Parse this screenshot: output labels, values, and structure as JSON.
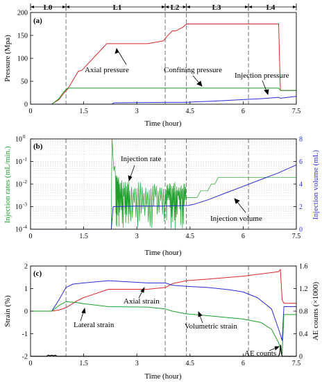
{
  "phases": {
    "labels": [
      "L0",
      "L1",
      "L2",
      "L3",
      "L4"
    ],
    "boundaries": [
      0,
      1.0,
      3.8,
      4.4,
      6.15,
      7.5
    ]
  },
  "colors": {
    "red": "#d62728",
    "green": "#1e9e2a",
    "blue": "#2b2bd6",
    "black": "#000000"
  },
  "chart_data": [
    {
      "type": "line",
      "panel_label": "(a)",
      "xlabel": "Time (hour)",
      "ylabel": "Pressure (Mpa)",
      "xlim": [
        0,
        7.5
      ],
      "ylim": [
        0,
        200
      ],
      "xticks": [
        0,
        1.5,
        3,
        4.5,
        6,
        7.5
      ],
      "xtick_labels": [
        "0",
        "1.5",
        "3",
        "4.5",
        "6",
        "7.5"
      ],
      "yticks": [
        0,
        50,
        100,
        150,
        200
      ],
      "ytick_labels": [
        "0",
        "50",
        "100",
        "150",
        "200"
      ],
      "grid": false,
      "series": [
        {
          "name": "Axial pressure",
          "color": "red",
          "x": [
            0,
            0.6,
            0.8,
            0.95,
            1.05,
            1.35,
            1.45,
            2.15,
            3.3,
            3.75,
            3.85,
            4.0,
            4.1,
            4.3,
            4.4,
            7.0,
            7.05,
            7.5
          ],
          "y": [
            0,
            0,
            10,
            25,
            33,
            72,
            74,
            132,
            132,
            138,
            148,
            160,
            160,
            168,
            175,
            175,
            30,
            30
          ]
        },
        {
          "name": "Confining pressure",
          "color": "green",
          "x": [
            0,
            0.6,
            0.8,
            0.95,
            1.05,
            7.0,
            7.05,
            7.5
          ],
          "y": [
            0,
            0,
            12,
            28,
            35,
            35,
            30,
            30
          ]
        },
        {
          "name": "Injection pressure",
          "color": "blue",
          "x": [
            0,
            2.3,
            2.35,
            3.8,
            4.4,
            4.6,
            5.0,
            5.5,
            6.0,
            6.5,
            6.85,
            7.0,
            7.05,
            7.5
          ],
          "y": [
            0,
            0,
            3,
            4,
            4,
            5,
            6,
            8,
            10,
            12,
            14,
            15,
            13,
            17
          ]
        }
      ],
      "annotations": [
        "Axial pressure",
        "Confining pressure",
        "Injection pressure"
      ]
    },
    {
      "type": "line",
      "panel_label": "(b)",
      "xlabel": "Time (hour)",
      "ylabel": "Injection rates  (mL/min.)",
      "y2label": "Injection volume (mL)",
      "xlim": [
        0,
        7.5
      ],
      "ylim_log10": [
        -4,
        0
      ],
      "y2lim": [
        0,
        8
      ],
      "xticks": [
        0,
        1.5,
        3,
        4.5,
        6,
        7.5
      ],
      "xtick_labels": [
        "0",
        "1.5",
        "3",
        "4.5",
        "6",
        "7.5"
      ],
      "yticks_log10": [
        -4,
        -3,
        -2,
        -1,
        0
      ],
      "ytick_exponents": [
        "-4",
        "-3",
        "-2",
        "-1",
        "0"
      ],
      "y2ticks": [
        0,
        2,
        4,
        6,
        8
      ],
      "y2tick_labels": [
        "0",
        "2",
        "4",
        "6",
        "8"
      ],
      "grid": true,
      "series": [
        {
          "name": "Injection rate",
          "color": "green",
          "axis": "left",
          "scale": "log",
          "x": [
            2.28,
            2.29,
            2.3,
            2.32,
            2.35,
            2.38,
            2.4,
            2.45,
            2.5,
            2.6,
            2.7,
            2.8,
            3.0,
            3.2,
            3.4,
            3.6,
            3.8,
            3.9,
            4.0,
            4.1,
            4.2,
            4.3,
            4.4,
            4.5,
            4.6,
            4.7,
            4.8,
            4.9,
            5.0,
            5.1,
            5.2,
            5.3,
            5.4,
            5.5,
            5.6,
            5.7,
            5.8,
            5.9,
            6.0,
            6.1,
            6.2,
            6.3,
            6.4,
            6.5,
            6.6,
            6.7,
            6.8,
            6.9,
            7.0,
            7.1,
            7.2,
            7.3,
            7.4,
            7.5
          ],
          "y_log10": [
            -4,
            -1.5,
            0,
            -0.6,
            -1.4,
            -1.2,
            -1.8,
            -1.9,
            -2.0,
            -2.2,
            -2.1,
            -2.3,
            -2.2,
            -2.4,
            -2.2,
            -2.3,
            -2.3,
            -2.2,
            -2.2,
            -2.3,
            -2.3,
            -2.2,
            -2.6,
            -2.6,
            -2.6,
            -2.6,
            -2.3,
            -2.3,
            -2.3,
            -2.0,
            -2.0,
            -1.7,
            -1.7,
            -1.7,
            -1.7,
            -1.7,
            -1.7,
            -1.7,
            -1.7,
            -1.7,
            -1.7,
            -1.7,
            -1.7,
            -1.7,
            -1.7,
            -1.7,
            -1.7,
            -1.7,
            -1.7,
            -1.7,
            -1.7,
            -1.7,
            -1.7,
            -1.7
          ]
        },
        {
          "name": "Injection volume",
          "color": "blue",
          "axis": "right",
          "x": [
            0,
            2.28,
            2.33,
            3.0,
            3.8,
            4.45,
            4.6,
            5.0,
            5.5,
            6.0,
            6.5,
            7.0,
            7.5
          ],
          "y": [
            0,
            0,
            2.0,
            2.05,
            2.05,
            2.1,
            2.2,
            2.6,
            3.2,
            3.8,
            4.4,
            5.0,
            5.7
          ]
        }
      ],
      "annotations": [
        "Injection rate",
        "Injection volume"
      ]
    },
    {
      "type": "line",
      "panel_label": "(c)",
      "xlabel": "Time (hour)",
      "ylabel": "Strain (%)",
      "y2label": "AE counts (×1000)",
      "xlim": [
        0,
        7.5
      ],
      "ylim": [
        -2,
        2
      ],
      "y2lim": [
        0,
        1.6
      ],
      "xticks": [
        0,
        1.5,
        3,
        4.5,
        6,
        7.5
      ],
      "xtick_labels": [
        "0",
        "1.5",
        "3",
        "4.5",
        "6",
        "7.5"
      ],
      "yticks": [
        -2,
        -1,
        0,
        1,
        2
      ],
      "ytick_labels": [
        "-2",
        "-1",
        "0",
        "1",
        "2"
      ],
      "y2ticks": [
        0,
        0.4,
        0.8,
        1.2,
        1.6
      ],
      "y2tick_labels": [
        "0",
        "0.4",
        "0.8",
        "1.2",
        "1.6"
      ],
      "grid": false,
      "series": [
        {
          "name": "Axial strain",
          "color": "red",
          "x": [
            0,
            0.6,
            0.8,
            1.0,
            1.3,
            1.5,
            2.2,
            3.3,
            3.8,
            4.0,
            4.4,
            5.0,
            6.0,
            7.0,
            7.05,
            7.1,
            7.15,
            7.5
          ],
          "y": [
            0,
            0,
            0.05,
            0.15,
            0.45,
            0.6,
            0.97,
            0.97,
            1.05,
            1.22,
            1.35,
            1.42,
            1.55,
            1.75,
            1.85,
            0.5,
            0.35,
            0.35
          ]
        },
        {
          "name": "Volumetric strain",
          "color": "blue",
          "x": [
            0,
            0.6,
            0.8,
            1.0,
            1.2,
            1.5,
            2.2,
            3.3,
            3.8,
            4.0,
            4.4,
            5.0,
            5.6,
            6.0,
            6.4,
            6.8,
            7.0,
            7.1,
            7.15,
            7.5
          ],
          "y": [
            0,
            0,
            0.5,
            1.05,
            1.2,
            1.25,
            1.35,
            1.25,
            1.25,
            1.15,
            1.1,
            1.05,
            0.95,
            0.85,
            0.6,
            0.1,
            -0.8,
            -1.3,
            0.2,
            0.2
          ]
        },
        {
          "name": "Lateral strain",
          "color": "green",
          "x": [
            0,
            0.6,
            0.8,
            1.0,
            1.3,
            1.5,
            2.2,
            3.3,
            3.8,
            4.0,
            4.4,
            5.0,
            6.0,
            6.5,
            6.8,
            7.0,
            7.1,
            7.15,
            7.5
          ],
          "y": [
            0,
            0,
            0.25,
            0.42,
            0.38,
            0.33,
            0.2,
            0.18,
            0.1,
            0.0,
            -0.12,
            -0.2,
            -0.35,
            -0.5,
            -0.8,
            -1.4,
            -1.9,
            -0.15,
            -0.15
          ]
        },
        {
          "name": "AE counts",
          "color": "black",
          "axis": "right",
          "x": [
            0,
            0.45,
            0.5,
            0.55,
            0.6,
            0.65,
            0.7,
            0.75,
            7.0,
            7.03,
            7.06,
            7.08,
            7.1,
            7.5
          ],
          "y": [
            0,
            0,
            0.02,
            0.01,
            0.02,
            0.01,
            0.02,
            0,
            0,
            0.05,
            0.2,
            0.05,
            0,
            0
          ]
        }
      ],
      "annotations": [
        "Axial strain",
        "Lateral strain",
        "Volumetric strain",
        "AE counts"
      ]
    }
  ]
}
